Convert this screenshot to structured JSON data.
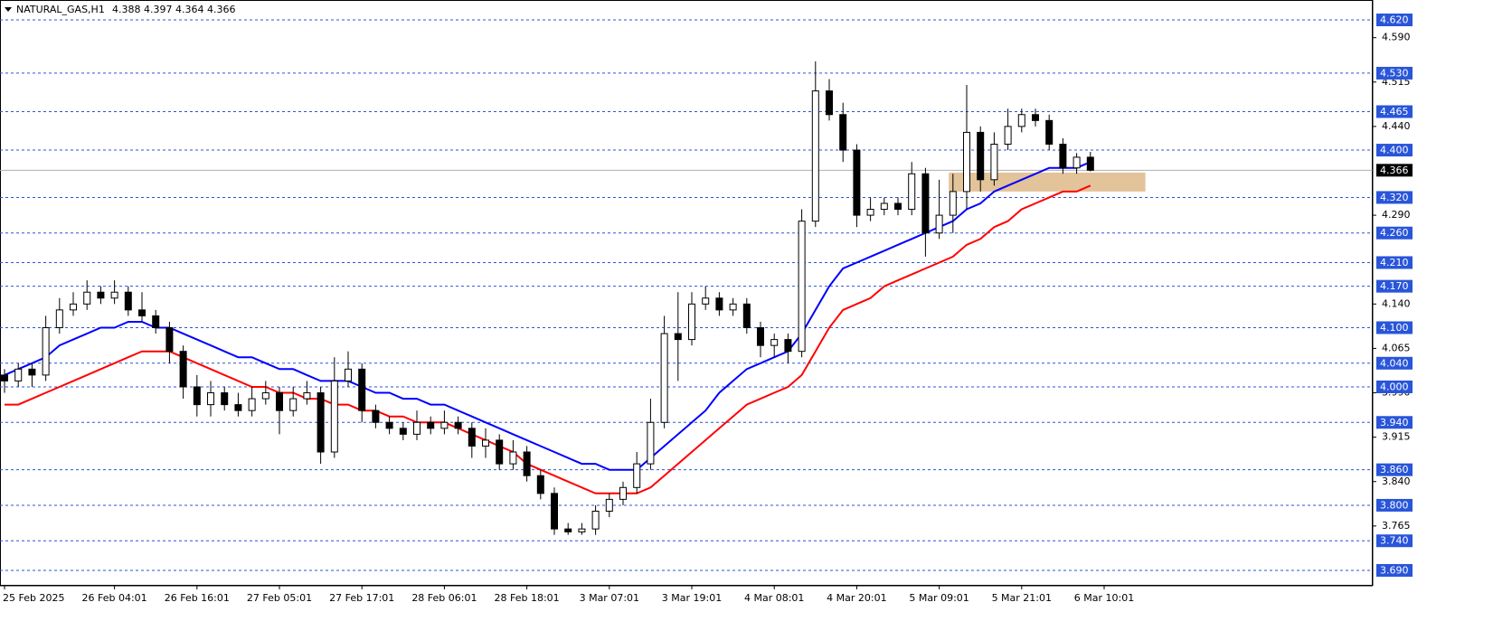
{
  "chart_data": {
    "type": "candlestick",
    "title": "NATURAL_GAS,H1",
    "quote": "4.388 4.397 4.364 4.366",
    "xlim": [
      -0.33,
      99.54
    ],
    "ylim": [
      3.664,
      4.6536
    ],
    "open": [
      4.02,
      4.01,
      4.03,
      4.02,
      4.1,
      4.13,
      4.14,
      4.16,
      4.15,
      4.16,
      4.13,
      4.12,
      4.1,
      4.06,
      4.0,
      3.97,
      3.99,
      3.97,
      3.96,
      3.98,
      3.99,
      3.96,
      3.98,
      3.99,
      3.89,
      4.01,
      4.03,
      3.96,
      3.94,
      3.93,
      3.92,
      3.94,
      3.93,
      3.94,
      3.93,
      3.9,
      3.91,
      3.87,
      3.89,
      3.85,
      3.82,
      3.76,
      3.755,
      3.76,
      3.79,
      3.81,
      3.83,
      3.87,
      3.94,
      4.09,
      4.08,
      4.14,
      4.15,
      4.13,
      4.14,
      4.1,
      4.07,
      4.08,
      4.06,
      4.28,
      4.5,
      4.46,
      4.4,
      4.29,
      4.3,
      4.31,
      4.3,
      4.36,
      4.26,
      4.29,
      4.33,
      4.43,
      4.35,
      4.41,
      4.44,
      4.46,
      4.45,
      4.41,
      4.37,
      4.388
    ],
    "high": [
      4.03,
      4.04,
      4.04,
      4.12,
      4.15,
      4.16,
      4.18,
      4.17,
      4.18,
      4.17,
      4.16,
      4.13,
      4.11,
      4.07,
      4.02,
      4.01,
      4.0,
      3.99,
      4.0,
      4.01,
      4.0,
      4.0,
      4.01,
      4.0,
      4.05,
      4.06,
      4.04,
      3.97,
      3.95,
      3.94,
      3.96,
      3.95,
      3.96,
      3.95,
      3.94,
      3.93,
      3.92,
      3.91,
      3.9,
      3.86,
      3.83,
      3.77,
      3.77,
      3.8,
      3.82,
      3.84,
      3.89,
      3.98,
      4.12,
      4.16,
      4.16,
      4.17,
      4.16,
      4.15,
      4.15,
      4.11,
      4.09,
      4.09,
      4.3,
      4.55,
      4.52,
      4.48,
      4.41,
      4.32,
      4.32,
      4.32,
      4.38,
      4.37,
      4.35,
      4.36,
      4.51,
      4.44,
      4.43,
      4.47,
      4.47,
      4.47,
      4.46,
      4.42,
      4.395,
      4.397
    ],
    "low": [
      3.99,
      4.0,
      4.0,
      4.01,
      4.09,
      4.12,
      4.13,
      4.14,
      4.14,
      4.12,
      4.11,
      4.09,
      4.04,
      3.98,
      3.95,
      3.95,
      3.96,
      3.95,
      3.95,
      3.97,
      3.92,
      3.95,
      3.97,
      3.87,
      3.88,
      4.0,
      3.94,
      3.93,
      3.92,
      3.91,
      3.91,
      3.92,
      3.92,
      3.92,
      3.88,
      3.88,
      3.86,
      3.86,
      3.84,
      3.81,
      3.75,
      3.75,
      3.75,
      3.75,
      3.78,
      3.8,
      3.82,
      3.86,
      3.93,
      4.01,
      4.07,
      4.13,
      4.12,
      4.12,
      4.09,
      4.05,
      4.05,
      4.04,
      4.05,
      4.27,
      4.45,
      4.38,
      4.27,
      4.28,
      4.29,
      4.29,
      4.29,
      4.22,
      4.25,
      4.26,
      4.3,
      4.33,
      4.34,
      4.4,
      4.43,
      4.44,
      4.4,
      4.36,
      4.36,
      4.364
    ],
    "close": [
      4.01,
      4.03,
      4.02,
      4.1,
      4.13,
      4.14,
      4.16,
      4.15,
      4.16,
      4.13,
      4.12,
      4.1,
      4.06,
      4.0,
      3.97,
      3.99,
      3.97,
      3.96,
      3.98,
      3.99,
      3.96,
      3.98,
      3.99,
      3.89,
      4.01,
      4.03,
      3.96,
      3.94,
      3.93,
      3.92,
      3.94,
      3.93,
      3.94,
      3.93,
      3.9,
      3.91,
      3.87,
      3.89,
      3.85,
      3.82,
      3.76,
      3.755,
      3.76,
      3.79,
      3.81,
      3.83,
      3.87,
      3.94,
      4.09,
      4.08,
      4.14,
      4.15,
      4.13,
      4.14,
      4.1,
      4.07,
      4.08,
      4.06,
      4.28,
      4.5,
      4.46,
      4.4,
      4.29,
      4.3,
      4.31,
      4.3,
      4.36,
      4.26,
      4.29,
      4.33,
      4.43,
      4.35,
      4.41,
      4.44,
      4.46,
      4.45,
      4.41,
      4.37,
      4.388,
      4.366
    ],
    "series": [
      {
        "color": "#0000ff",
        "values": [
          4.02,
          4.03,
          4.04,
          4.05,
          4.07,
          4.08,
          4.09,
          4.1,
          4.1,
          4.11,
          4.11,
          4.1,
          4.1,
          4.09,
          4.08,
          4.07,
          4.06,
          4.05,
          4.05,
          4.04,
          4.03,
          4.03,
          4.02,
          4.01,
          4.01,
          4.01,
          4.0,
          3.99,
          3.99,
          3.98,
          3.98,
          3.97,
          3.97,
          3.96,
          3.95,
          3.94,
          3.93,
          3.92,
          3.91,
          3.9,
          3.89,
          3.88,
          3.87,
          3.87,
          3.86,
          3.86,
          3.86,
          3.88,
          3.9,
          3.92,
          3.94,
          3.96,
          3.99,
          4.01,
          4.03,
          4.04,
          4.05,
          4.06,
          4.09,
          4.13,
          4.17,
          4.2,
          4.21,
          4.22,
          4.23,
          4.24,
          4.25,
          4.26,
          4.27,
          4.28,
          4.3,
          4.31,
          4.33,
          4.34,
          4.35,
          4.36,
          4.37,
          4.37,
          4.37,
          4.38
        ]
      },
      {
        "color": "#ff0000",
        "values": [
          3.97,
          3.97,
          3.98,
          3.99,
          4.0,
          4.01,
          4.02,
          4.03,
          4.04,
          4.05,
          4.06,
          4.06,
          4.06,
          4.05,
          4.04,
          4.03,
          4.02,
          4.01,
          4.0,
          4.0,
          3.99,
          3.99,
          3.98,
          3.98,
          3.97,
          3.97,
          3.96,
          3.96,
          3.95,
          3.95,
          3.94,
          3.94,
          3.94,
          3.93,
          3.92,
          3.91,
          3.9,
          3.89,
          3.87,
          3.86,
          3.85,
          3.84,
          3.83,
          3.82,
          3.82,
          3.82,
          3.82,
          3.83,
          3.85,
          3.87,
          3.89,
          3.91,
          3.93,
          3.95,
          3.97,
          3.98,
          3.99,
          4.0,
          4.02,
          4.06,
          4.1,
          4.13,
          4.14,
          4.15,
          4.17,
          4.18,
          4.19,
          4.2,
          4.21,
          4.22,
          4.24,
          4.25,
          4.27,
          4.28,
          4.3,
          4.31,
          4.32,
          4.33,
          4.33,
          4.34
        ]
      }
    ],
    "levels": [
      {
        "value": 4.62,
        "label": "4.620"
      },
      {
        "value": 4.53,
        "label": "4.530"
      },
      {
        "value": 4.465,
        "label": "4.465"
      },
      {
        "value": 4.4,
        "label": "4.400"
      },
      {
        "value": 4.32,
        "label": "4.320"
      },
      {
        "value": 4.26,
        "label": "4.260"
      },
      {
        "value": 4.21,
        "label": "4.210"
      },
      {
        "value": 4.17,
        "label": "4.170"
      },
      {
        "value": 4.1,
        "label": "4.100"
      },
      {
        "value": 4.04,
        "label": "4.040"
      },
      {
        "value": 4,
        "label": "4.000"
      },
      {
        "value": 3.94,
        "label": "3.940"
      },
      {
        "value": 3.86,
        "label": "3.860"
      },
      {
        "value": 3.8,
        "label": "3.800"
      },
      {
        "value": 3.74,
        "label": "3.740"
      },
      {
        "value": 3.69,
        "label": "3.690"
      }
    ],
    "level_color": "#2955d9",
    "yticks": [
      {
        "value": 4.59,
        "label": "4.590"
      },
      {
        "value": 4.515,
        "label": "4.515"
      },
      {
        "value": 4.44,
        "label": "4.440"
      },
      {
        "value": 4.29,
        "label": "4.290"
      },
      {
        "value": 4.14,
        "label": "4.140"
      },
      {
        "value": 4.065,
        "label": "4.065"
      },
      {
        "value": 3.99,
        "label": "3.990"
      },
      {
        "value": 3.915,
        "label": "3.915"
      },
      {
        "value": 3.84,
        "label": "3.840"
      },
      {
        "value": 3.765,
        "label": "3.765"
      }
    ],
    "current_price": {
      "value": 4.366,
      "label": "4.366"
    },
    "xticks": [
      {
        "value": 0,
        "label": "25 Feb 2025"
      },
      {
        "value": 8,
        "label": "26 Feb 04:01"
      },
      {
        "value": 14,
        "label": "26 Feb 16:01"
      },
      {
        "value": 20,
        "label": "27 Feb 05:01"
      },
      {
        "value": 26,
        "label": "27 Feb 17:01"
      },
      {
        "value": 32,
        "label": "28 Feb 06:01"
      },
      {
        "value": 38,
        "label": "28 Feb 18:01"
      },
      {
        "value": 44,
        "label": "3 Mar 07:01"
      },
      {
        "value": 50,
        "label": "3 Mar 19:01"
      },
      {
        "value": 56,
        "label": "4 Mar 08:01"
      },
      {
        "value": 62,
        "label": "4 Mar 20:01"
      },
      {
        "value": 68,
        "label": "5 Mar 09:01"
      },
      {
        "value": 74,
        "label": "5 Mar 21:01"
      },
      {
        "value": 80,
        "label": "6 Mar 10:01"
      }
    ],
    "zone": {
      "x": [
        68.7,
        83
      ],
      "y": [
        4.33,
        4.362
      ],
      "color": "#deb887"
    }
  }
}
